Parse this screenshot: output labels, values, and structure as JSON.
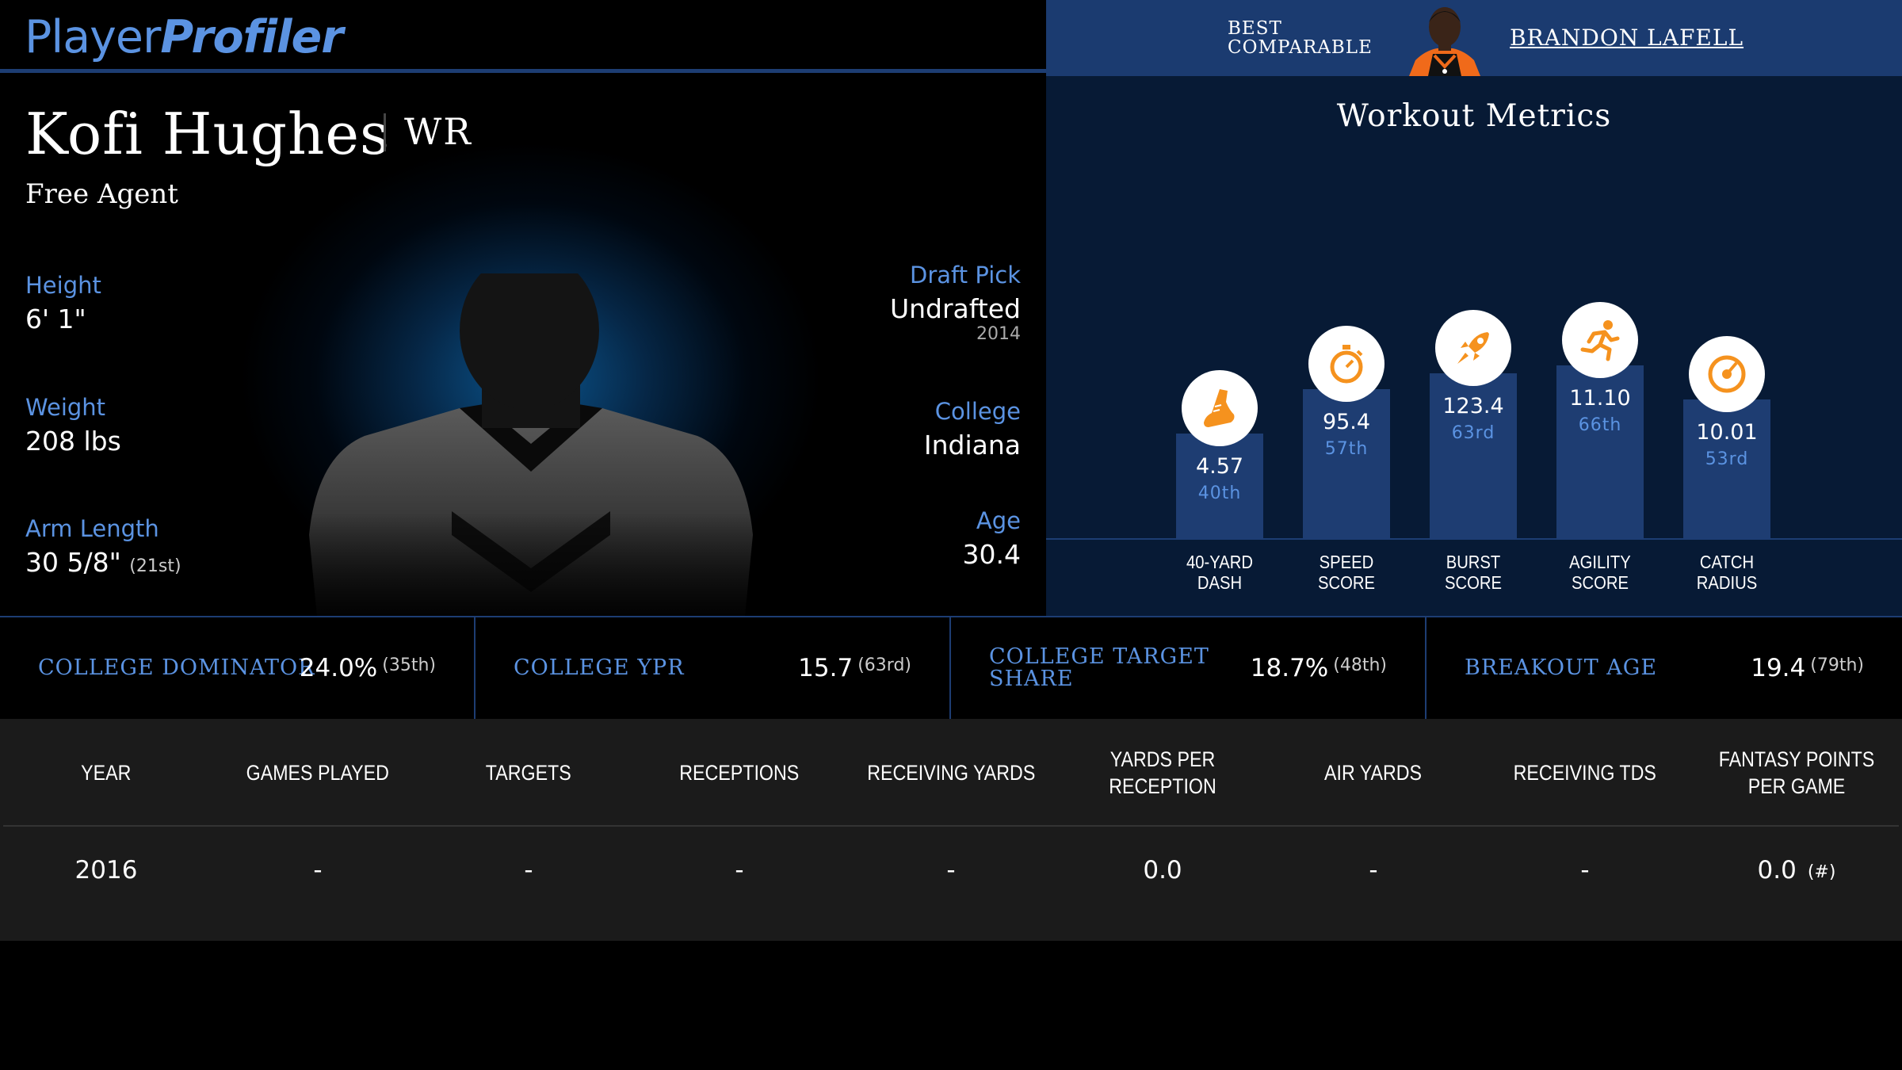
{
  "brand": {
    "part1": "Player",
    "part2": "Profiler"
  },
  "comparable": {
    "label_line1": "BEST",
    "label_line2": "COMPARABLE",
    "name": "BRANDON LAFELL"
  },
  "player": {
    "name": "Kofi Hughes",
    "position": "WR",
    "team": "Free Agent",
    "height_label": "Height",
    "height": "6' 1\"",
    "weight_label": "Weight",
    "weight": "208 lbs",
    "arm_label": "Arm Length",
    "arm": "30 5/8\"",
    "arm_pct": "(21st)",
    "draft_label": "Draft Pick",
    "draft": "Undrafted",
    "draft_year": "2014",
    "college_label": "College",
    "college": "Indiana",
    "age_label": "Age",
    "age": "30.4"
  },
  "workout": {
    "title": "Workout Metrics",
    "metrics": [
      {
        "value": "4.57",
        "percentile": "40th",
        "percentile_num": 40,
        "label_line1": "40-YARD",
        "label_line2": "DASH",
        "icon": "shoe-icon"
      },
      {
        "value": "95.4",
        "percentile": "57th",
        "percentile_num": 57,
        "label_line1": "SPEED",
        "label_line2": "SCORE",
        "icon": "stopwatch-icon"
      },
      {
        "value": "123.4",
        "percentile": "63rd",
        "percentile_num": 63,
        "label_line1": "BURST",
        "label_line2": "SCORE",
        "icon": "rocket-icon"
      },
      {
        "value": "11.10",
        "percentile": "66th",
        "percentile_num": 66,
        "label_line1": "AGILITY",
        "label_line2": "SCORE",
        "icon": "runner-icon"
      },
      {
        "value": "10.01",
        "percentile": "53rd",
        "percentile_num": 53,
        "label_line1": "CATCH",
        "label_line2": "RADIUS",
        "icon": "target-icon"
      }
    ]
  },
  "college_metrics": [
    {
      "label": "COLLEGE DOMINATOR",
      "value": "24.0%",
      "percentile": "(35th)"
    },
    {
      "label": "COLLEGE YPR",
      "value": "15.7",
      "percentile": "(63rd)"
    },
    {
      "label": "COLLEGE TARGET SHARE",
      "value": "18.7%",
      "percentile": "(48th)"
    },
    {
      "label": "BREAKOUT AGE",
      "value": "19.4",
      "percentile": "(79th)"
    }
  ],
  "stats_table": {
    "columns": [
      "YEAR",
      "GAMES PLAYED",
      "TARGETS",
      "RECEPTIONS",
      "RECEIVING YARDS",
      "YARDS PER RECEPTION",
      "AIR YARDS",
      "RECEIVING TDS",
      "FANTASY POINTS PER GAME"
    ],
    "rows": [
      [
        "2016",
        "-",
        "-",
        "-",
        "-",
        "0.0",
        "-",
        "-",
        "0.0"
      ]
    ],
    "rank_marker": "(#)"
  },
  "colors": {
    "accent": "#5b93e2",
    "navy": "#1b3b70",
    "bar": "#1e3d72",
    "icon_orange": "#f5921e"
  }
}
